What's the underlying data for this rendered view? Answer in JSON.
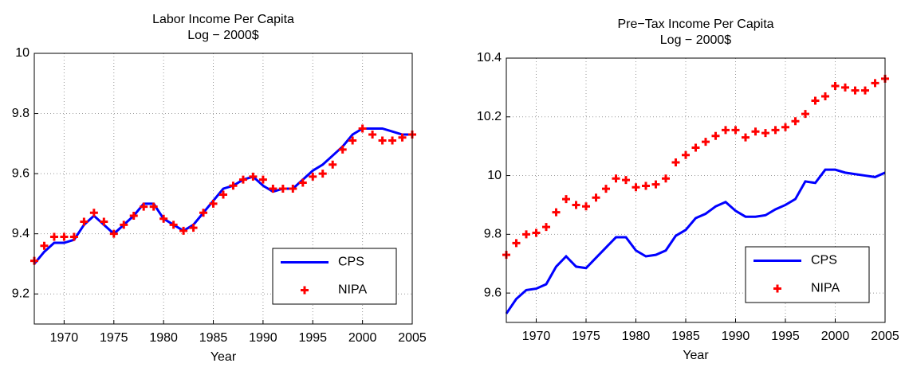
{
  "chart_data": [
    {
      "type": "line",
      "title": "Labor Income Per Capita",
      "subtitle": "Log − 2000$",
      "xlabel": "Year",
      "x": [
        1967,
        1968,
        1969,
        1970,
        1971,
        1972,
        1973,
        1974,
        1975,
        1976,
        1977,
        1978,
        1979,
        1980,
        1981,
        1982,
        1983,
        1984,
        1985,
        1986,
        1987,
        1988,
        1989,
        1990,
        1991,
        1992,
        1993,
        1994,
        1995,
        1996,
        1997,
        1998,
        1999,
        2000,
        2001,
        2002,
        2003,
        2004,
        2005
      ],
      "series": [
        {
          "name": "CPS",
          "color": "#0000ff",
          "marker": "line",
          "values": [
            9.3,
            9.34,
            9.37,
            9.37,
            9.38,
            9.43,
            9.46,
            9.43,
            9.4,
            9.43,
            9.46,
            9.5,
            9.5,
            9.45,
            9.43,
            9.41,
            9.43,
            9.47,
            9.51,
            9.55,
            9.56,
            9.58,
            9.59,
            9.56,
            9.54,
            9.55,
            9.55,
            9.58,
            9.61,
            9.63,
            9.66,
            9.69,
            9.73,
            9.75,
            9.75,
            9.75,
            9.74,
            9.73,
            9.73
          ]
        },
        {
          "name": "NIPA",
          "color": "#ff0000",
          "marker": "plus",
          "values": [
            9.31,
            9.36,
            9.39,
            9.39,
            9.39,
            9.44,
            9.47,
            9.44,
            9.4,
            9.43,
            9.46,
            9.49,
            9.49,
            9.45,
            9.43,
            9.41,
            9.42,
            9.47,
            9.5,
            9.53,
            9.56,
            9.58,
            9.59,
            9.58,
            9.55,
            9.55,
            9.55,
            9.57,
            9.59,
            9.6,
            9.63,
            9.68,
            9.71,
            9.75,
            9.73,
            9.71,
            9.71,
            9.72,
            9.73
          ]
        }
      ],
      "xlim": [
        1967,
        2005
      ],
      "xticks": [
        1970,
        1975,
        1980,
        1985,
        1990,
        1995,
        2000,
        2005
      ],
      "ylim": [
        9.1,
        10
      ],
      "yticks": [
        9.2,
        9.4,
        9.6,
        9.8,
        10
      ],
      "grid": true,
      "legend": "lower right"
    },
    {
      "type": "line",
      "title": "Pre−Tax Income Per Capita",
      "subtitle": "Log − 2000$",
      "xlabel": "Year",
      "x": [
        1967,
        1968,
        1969,
        1970,
        1971,
        1972,
        1973,
        1974,
        1975,
        1976,
        1977,
        1978,
        1979,
        1980,
        1981,
        1982,
        1983,
        1984,
        1985,
        1986,
        1987,
        1988,
        1989,
        1990,
        1991,
        1992,
        1993,
        1994,
        1995,
        1996,
        1997,
        1998,
        1999,
        2000,
        2001,
        2002,
        2003,
        2004,
        2005
      ],
      "series": [
        {
          "name": "CPS",
          "color": "#0000ff",
          "marker": "line",
          "values": [
            9.53,
            9.58,
            9.61,
            9.615,
            9.63,
            9.69,
            9.725,
            9.69,
            9.685,
            9.72,
            9.755,
            9.79,
            9.79,
            9.745,
            9.725,
            9.73,
            9.745,
            9.795,
            9.815,
            9.855,
            9.87,
            9.895,
            9.91,
            9.88,
            9.86,
            9.86,
            9.865,
            9.885,
            9.9,
            9.92,
            9.98,
            9.975,
            10.02,
            10.02,
            10.01,
            10.005,
            10.0,
            9.995,
            10.01
          ]
        },
        {
          "name": "NIPA",
          "color": "#ff0000",
          "marker": "plus",
          "values": [
            9.73,
            9.77,
            9.8,
            9.805,
            9.825,
            9.875,
            9.92,
            9.9,
            9.895,
            9.925,
            9.955,
            9.99,
            9.985,
            9.96,
            9.965,
            9.97,
            9.99,
            10.045,
            10.07,
            10.095,
            10.115,
            10.135,
            10.155,
            10.155,
            10.13,
            10.15,
            10.145,
            10.155,
            10.165,
            10.185,
            10.21,
            10.255,
            10.27,
            10.305,
            10.3,
            10.29,
            10.29,
            10.315,
            10.33
          ]
        }
      ],
      "xlim": [
        1967,
        2005
      ],
      "xticks": [
        1970,
        1975,
        1980,
        1985,
        1990,
        1995,
        2000,
        2005
      ],
      "ylim": [
        9.5,
        10.4
      ],
      "yticks": [
        9.6,
        9.8,
        10,
        10.2,
        10.4
      ],
      "grid": true,
      "legend": "lower right"
    }
  ]
}
